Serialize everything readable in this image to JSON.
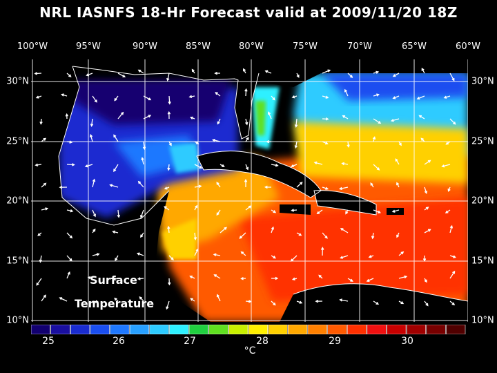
{
  "title": "NRL IASNFS  18-Hr Forecast valid at 2009/11/20 18Z",
  "lon_labels": [
    "100°W",
    "95°W",
    "90°W",
    "85°W",
    "80°W",
    "75°W",
    "70°W",
    "65°W",
    "60°W"
  ],
  "lat_labels": [
    "30°N",
    "25°N",
    "20°N",
    "15°N",
    "10°N"
  ],
  "overlay_label_1": "Surface",
  "overlay_label_2": "Temperature",
  "colorbar": {
    "ticks": [
      "25",
      "26",
      "27",
      "28",
      "29",
      "30"
    ],
    "unit": "°C",
    "colors": [
      "#120070",
      "#1a0fa0",
      "#1a2cd0",
      "#1a4ef0",
      "#1f78ff",
      "#28a0ff",
      "#2ecbff",
      "#2ef0ff",
      "#20d040",
      "#60e020",
      "#c8f000",
      "#fff000",
      "#ffd000",
      "#ffa800",
      "#ff8000",
      "#ff5a00",
      "#ff3000",
      "#f01010",
      "#c80000",
      "#a00000",
      "#780000",
      "#500000"
    ]
  },
  "map_colors": {
    "land": "#000000",
    "coast": "#ffffff",
    "gulf": "#1a2cd0",
    "gulf_deep": "#120070",
    "atlantic_cool": "#2ecbff",
    "atlantic_mid": "#ffd000",
    "caribbean": "#ff5a00",
    "caribbean_hot": "#ff3000"
  }
}
